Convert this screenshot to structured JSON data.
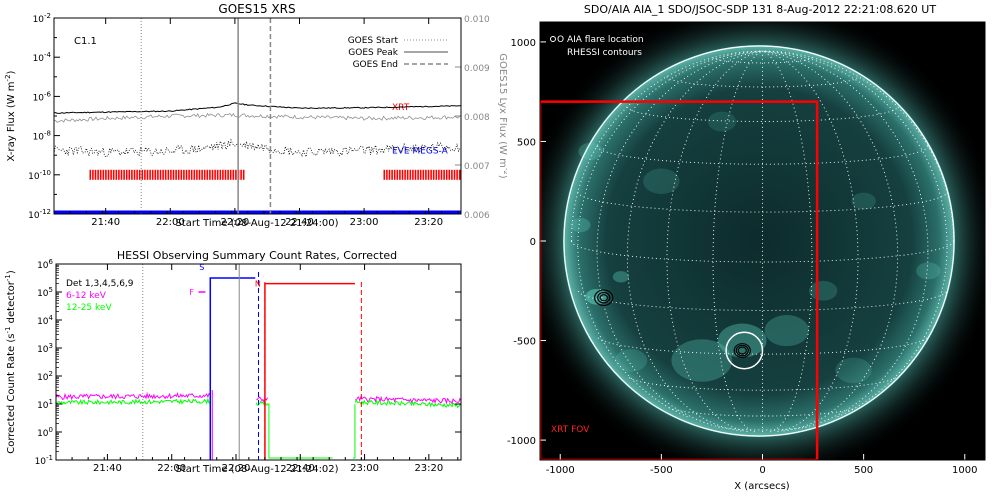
{
  "chart_data": [
    {
      "type": "line",
      "title": "GOES15 XRS",
      "xlabel": "Start Time (08-Aug-12 21:24:00)",
      "ylabel": "X-ray Flux (W m",
      "ylabel_sup": "-2",
      "y2label": "GOES15 Lyx Flux (W m",
      "y2label_sup": "-2",
      "ylog": true,
      "ylim_exp": [
        -12,
        -2
      ],
      "y_ticks": [
        {
          "b": "10",
          "e": "-2",
          "exp": -2
        },
        {
          "b": "10",
          "e": "-4",
          "exp": -4
        },
        {
          "b": "10",
          "e": "-6",
          "exp": -6
        },
        {
          "b": "10",
          "e": "-8",
          "exp": -8
        },
        {
          "b": "10",
          "e": "-10",
          "exp": -10
        },
        {
          "b": "10",
          "e": "-12",
          "exp": -12
        }
      ],
      "y2lim": [
        0.006,
        0.01
      ],
      "y2_ticks": [
        "0.006",
        "0.007",
        "0.008",
        "0.009",
        "0.010"
      ],
      "xlim": [
        "21:24",
        "23:30"
      ],
      "x_ticks": [
        "21:40",
        "22:00",
        "22:20",
        "22:40",
        "23:00",
        "23:20"
      ],
      "annotation": "C1.1",
      "legend": [
        "GOES Start",
        "GOES Peak",
        "GOES End"
      ],
      "legend_position": "top-right",
      "series_labels": [
        {
          "text": "XRT",
          "color": "#ff0000"
        },
        {
          "text": "EVE MEGS-A",
          "color": "#0000ff"
        }
      ],
      "goes_start": "21:51",
      "goes_peak": "22:21",
      "goes_end": "22:31",
      "xrt_coverage": [
        [
          "21:35",
          "22:23"
        ],
        [
          "23:06",
          "23:30"
        ]
      ],
      "eve_level_exp": -11.9,
      "xrs_long": [
        [
          "21:24",
          -6.85
        ],
        [
          "21:40",
          -6.8
        ],
        [
          "22:00",
          -6.75
        ],
        [
          "22:15",
          -6.55
        ],
        [
          "22:20",
          -6.35
        ],
        [
          "22:25",
          -6.45
        ],
        [
          "22:40",
          -6.6
        ],
        [
          "23:00",
          -6.58
        ],
        [
          "23:30",
          -6.48
        ]
      ],
      "xrs_short": [
        [
          "21:24",
          -8.85
        ],
        [
          "21:40",
          -8.95
        ],
        [
          "22:00",
          -8.9
        ],
        [
          "22:10",
          -8.75
        ],
        [
          "22:20",
          -8.5
        ],
        [
          "22:30",
          -8.7
        ],
        [
          "22:40",
          -8.95
        ],
        [
          "23:00",
          -8.85
        ],
        [
          "23:30",
          -8.65
        ]
      ],
      "lya": [
        [
          "21:24",
          0.0079
        ],
        [
          "21:40",
          0.00795
        ],
        [
          "22:00",
          0.008
        ],
        [
          "22:20",
          0.00802
        ],
        [
          "22:40",
          0.00798
        ],
        [
          "23:00",
          0.00795
        ],
        [
          "23:30",
          0.00798
        ]
      ]
    },
    {
      "type": "line",
      "title": "HESSI Observing Summary Count Rates, Corrected",
      "xlabel": "Start Time (08-Aug-12 21:24:02)",
      "ylabel": "Corrected Count Rate (s",
      "ylabel_sup": "-1",
      "ylabel_tail": "detector",
      "ylabel_tail_sup": "-1",
      "ylabel_end": ")",
      "ylog": true,
      "ylim_exp": [
        -1,
        6
      ],
      "y_ticks": [
        {
          "b": "10",
          "e": "6",
          "exp": 6
        },
        {
          "b": "10",
          "e": "5",
          "exp": 5
        },
        {
          "b": "10",
          "e": "4",
          "exp": 4
        },
        {
          "b": "10",
          "e": "3",
          "exp": 3
        },
        {
          "b": "10",
          "e": "2",
          "exp": 2
        },
        {
          "b": "10",
          "e": "1",
          "exp": 1
        },
        {
          "b": "10",
          "e": "0",
          "exp": 0
        },
        {
          "b": "10",
          "e": "-1",
          "exp": -1
        }
      ],
      "xlim": [
        "21:24",
        "23:30"
      ],
      "x_ticks": [
        "21:40",
        "22:00",
        "22:20",
        "22:40",
        "23:00",
        "23:20"
      ],
      "legend": [
        {
          "name": "Det 1,3,4,5,6,9",
          "color": "#000000"
        },
        {
          "name": "6-12 keV",
          "color": "#ff00ff"
        },
        {
          "name": "12-25 keV",
          "color": "#00ff00"
        }
      ],
      "legend_position": "top-left",
      "flags": [
        {
          "text": "F",
          "color": "#ff00ff"
        },
        {
          "text": "S",
          "color": "#0000ff"
        },
        {
          "text": "N",
          "color": "#ff0000"
        }
      ],
      "saa_interval": [
        "22:12",
        "22:26"
      ],
      "night_interval": [
        "22:29",
        "22:57"
      ],
      "data_gap": [
        "22:30",
        "22:50"
      ],
      "vlines": {
        "gray": [
          "21:51",
          "22:21"
        ],
        "blue_dash": "22:27",
        "red_dash": "22:59"
      },
      "rate_6_12": [
        [
          "21:24",
          1.25
        ],
        [
          "22:12",
          1.3
        ],
        [
          "22:30",
          1.15
        ],
        [
          "22:50",
          1.2
        ],
        [
          "23:30",
          1.1
        ]
      ],
      "rate_12_25": [
        [
          "21:24",
          1.05
        ],
        [
          "22:12",
          1.1
        ],
        [
          "22:30",
          1.0
        ],
        [
          "22:50",
          1.1
        ],
        [
          "23:30",
          0.95
        ]
      ],
      "saa_rate_exp": 5.5,
      "night_rate_exp": 5.3
    },
    {
      "type": "other",
      "title": "SDO/AIA AIA_1 SDO/JSOC-SDP 131  8-Aug-2012 22:21:08.620 UT",
      "xlabel": "X (arcsecs)",
      "ylabel": "",
      "xlim": [
        -1100,
        1100
      ],
      "ylim": [
        -1100,
        1100
      ],
      "x_ticks": [
        "-1000",
        "-500",
        "0",
        "500",
        "1000"
      ],
      "y_ticks": [
        "1000",
        "500",
        "0",
        "-500",
        "-1000"
      ],
      "legend": [
        "O AIA flare location",
        "RHESSI contours"
      ],
      "legend_position": "top-left",
      "box_label": "XRT FOV",
      "xrt_fov": {
        "x": [
          -1100,
          270
        ],
        "y": [
          -1100,
          700
        ]
      },
      "limb_radius": 945,
      "flare_center": [
        -90,
        -550
      ],
      "flare_circle_radius": 90,
      "contour_sources": [
        {
          "center": [
            -100,
            -550
          ],
          "radii": [
            40,
            30,
            20
          ]
        },
        {
          "center": [
            -785,
            -285
          ],
          "radii": [
            45,
            30,
            18
          ]
        }
      ]
    }
  ]
}
